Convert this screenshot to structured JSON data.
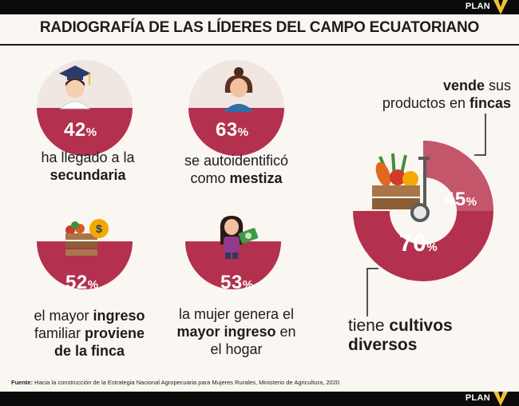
{
  "header": {
    "brand": "PLAN"
  },
  "title": "RADIOGRAFÍA DE LAS LÍDERES DEL CAMPO ECUATORIANO",
  "colors": {
    "accent": "#b3314e",
    "accent_light": "#c4566c",
    "text": "#1c1c1c",
    "bar": "#0b0b0b",
    "brand_yellow": "#f2c230"
  },
  "stats": [
    {
      "value": "42",
      "sign": "%",
      "line1": "ha llegado a la",
      "line2_bold": "secundaria",
      "icon": "graduate-icon"
    },
    {
      "value": "63",
      "sign": "%",
      "line1": "se autoidentificó",
      "line2_pre": "como ",
      "line2_bold": "mestiza",
      "icon": "woman-icon"
    },
    {
      "value": "52",
      "sign": "%",
      "line1_pre": "el mayor ",
      "line1_bold": "ingreso",
      "line2_pre": "familiar ",
      "line2_bold": "proviene",
      "line3_bold": "de la finca",
      "icon": "crate-money-icon"
    },
    {
      "value": "53",
      "sign": "%",
      "line1": "la mujer genera el",
      "line2_bold": "mayor ingreso",
      "line2_post": " en",
      "line3": "el hogar",
      "icon": "girl-money-icon"
    }
  ],
  "donut": {
    "outer": {
      "value": "45",
      "sign": "%",
      "label_bold": "vende",
      "label_pre": " sus",
      "label2_pre": "productos en ",
      "label2_bold": "fincas"
    },
    "inner": {
      "value": "70",
      "sign": "%",
      "label_pre": "tiene ",
      "label_bold": "cultivos",
      "label2_bold": "diversos"
    },
    "icon": "vegetable-cart-icon"
  },
  "source": {
    "label": "Fuente:",
    "text": " Hacia la construcción de la Estrategia Nacional Agropecuaria para Mujeres Rurales, Ministerio de Agricultura, 2020"
  }
}
